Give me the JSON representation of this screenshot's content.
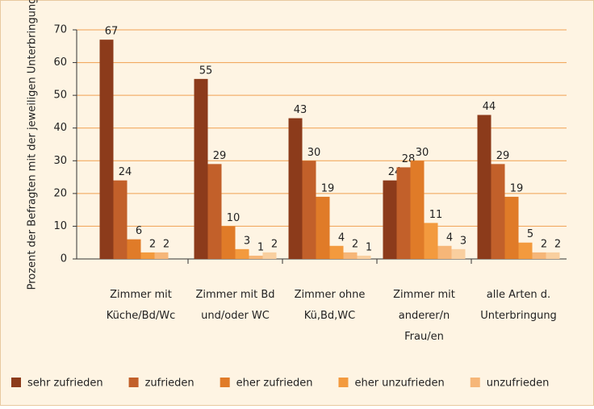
{
  "chart_data": {
    "type": "bar",
    "y_label": "Prozent der Befragten mit der jeweiligen Unterbringung",
    "categories": [
      "Zimmer mit\nKüche/Bd/Wc",
      "Zimmer mit Bd\nund/oder WC",
      "Zimmer ohne\nKü,Bd,WC",
      "Zimmer mit\nanderer/n\nFrau/en",
      "alle Arten d.\nUnterbringung"
    ],
    "series": [
      {
        "name": "sehr zufrieden",
        "color": "#8c3b1b",
        "values": [
          67,
          55,
          43,
          24,
          44
        ]
      },
      {
        "name": "zufrieden",
        "color": "#c2602a",
        "values": [
          24,
          29,
          30,
          28,
          29
        ]
      },
      {
        "name": "eher zufrieden",
        "color": "#e07b28",
        "values": [
          6,
          10,
          19,
          30,
          19
        ]
      },
      {
        "name": "eher unzufrieden",
        "color": "#f39a3e",
        "values": [
          2,
          3,
          4,
          11,
          5
        ]
      },
      {
        "name": "unzufrieden",
        "color": "#f6b678",
        "values": [
          2,
          1,
          2,
          4,
          2
        ]
      },
      {
        "color": "#f9cf9f",
        "values": [
          null,
          2,
          1,
          3,
          2
        ]
      }
    ],
    "ylim": [
      0,
      70
    ],
    "yticks": [
      0,
      10,
      20,
      30,
      40,
      50,
      60,
      70
    ],
    "grid": true
  }
}
